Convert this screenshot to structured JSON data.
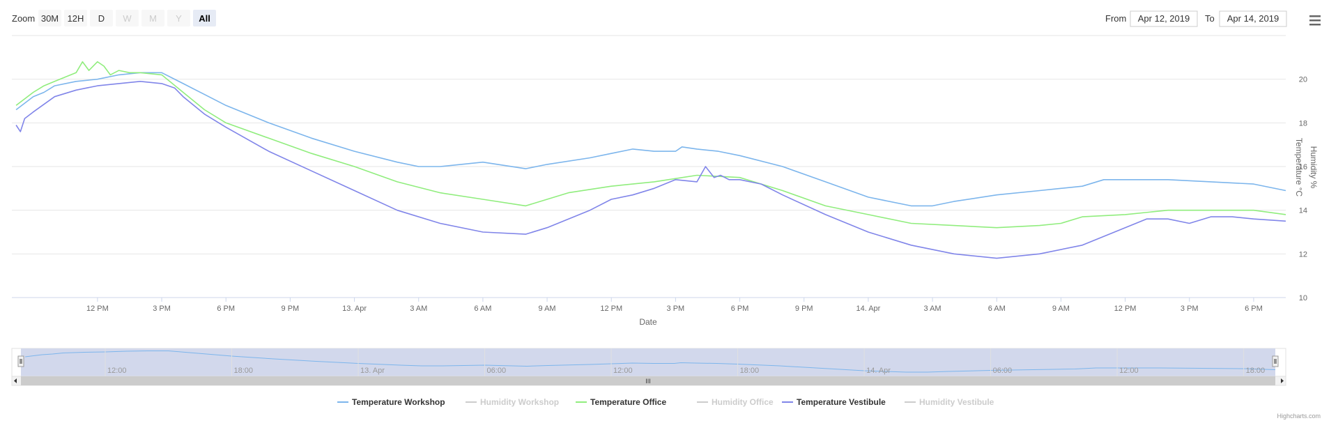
{
  "range_selector": {
    "zoom_label": "Zoom",
    "buttons": [
      {
        "label": "30M",
        "state": "normal"
      },
      {
        "label": "12H",
        "state": "normal"
      },
      {
        "label": "D",
        "state": "normal"
      },
      {
        "label": "W",
        "state": "disabled"
      },
      {
        "label": "M",
        "state": "disabled"
      },
      {
        "label": "Y",
        "state": "disabled"
      },
      {
        "label": "All",
        "state": "active"
      }
    ],
    "from_label": "From",
    "from_value": "Apr 12, 2019",
    "to_label": "To",
    "to_value": "Apr 14, 2019"
  },
  "menu_icon": "hamburger-menu-icon",
  "credits": "Highcharts.com",
  "navigator": {
    "labels": [
      "12:00",
      "18:00",
      "13. Apr",
      "06:00",
      "12:00",
      "18:00",
      "14. Apr",
      "06:00",
      "12:00",
      "18:00"
    ],
    "scrollbar_grip": "III"
  },
  "chart_data": {
    "type": "line",
    "xlabel": "Date",
    "ylabel": "Temperature °C",
    "ylabel_secondary": "Humidity %",
    "ylim": [
      10,
      22
    ],
    "y_ticks": [
      10,
      12,
      14,
      16,
      18,
      20
    ],
    "xlim_hours": [
      8.0,
      67.5
    ],
    "x_ticks": [
      {
        "h": 12,
        "label": "12 PM"
      },
      {
        "h": 15,
        "label": "3 PM"
      },
      {
        "h": 18,
        "label": "6 PM"
      },
      {
        "h": 21,
        "label": "9 PM"
      },
      {
        "h": 24,
        "label": "13. Apr"
      },
      {
        "h": 27,
        "label": "3 AM"
      },
      {
        "h": 30,
        "label": "6 AM"
      },
      {
        "h": 33,
        "label": "9 AM"
      },
      {
        "h": 36,
        "label": "12 PM"
      },
      {
        "h": 39,
        "label": "3 PM"
      },
      {
        "h": 42,
        "label": "6 PM"
      },
      {
        "h": 45,
        "label": "9 PM"
      },
      {
        "h": 48,
        "label": "14. Apr"
      },
      {
        "h": 51,
        "label": "3 AM"
      },
      {
        "h": 54,
        "label": "6 AM"
      },
      {
        "h": 57,
        "label": "9 AM"
      },
      {
        "h": 60,
        "label": "12 PM"
      },
      {
        "h": 63,
        "label": "3 PM"
      },
      {
        "h": 66,
        "label": "6 PM"
      }
    ],
    "legend_position": "bottom-center",
    "grid": true,
    "series": [
      {
        "name": "Temperature Workshop",
        "color": "#7cb5ec",
        "visible": true,
        "x": [
          8.2,
          9,
          9.5,
          10,
          11,
          12,
          13,
          14,
          15,
          16,
          17,
          18,
          20,
          22,
          24,
          26,
          27,
          28,
          30,
          32,
          33,
          35,
          36,
          37,
          38,
          39,
          39.3,
          40,
          41,
          42,
          44,
          46,
          48,
          50,
          51,
          52,
          54,
          56,
          57,
          58,
          59,
          60,
          62,
          64,
          66,
          67.5
        ],
        "y": [
          18.6,
          19.2,
          19.4,
          19.7,
          19.9,
          20.0,
          20.2,
          20.3,
          20.3,
          19.8,
          19.3,
          18.8,
          18.0,
          17.3,
          16.7,
          16.2,
          16.0,
          16.0,
          16.2,
          15.9,
          16.1,
          16.4,
          16.6,
          16.8,
          16.7,
          16.7,
          16.9,
          16.8,
          16.7,
          16.5,
          16.0,
          15.3,
          14.6,
          14.2,
          14.2,
          14.4,
          14.7,
          14.9,
          15.0,
          15.1,
          15.4,
          15.4,
          15.4,
          15.3,
          15.2,
          14.9
        ]
      },
      {
        "name": "Humidity Workshop",
        "color": "#cccccc",
        "visible": false,
        "x": [],
        "y": []
      },
      {
        "name": "Temperature Office",
        "color": "#90ed7d",
        "visible": true,
        "x": [
          8.2,
          9,
          9.5,
          10,
          10.5,
          11,
          11.3,
          11.6,
          12,
          12.3,
          12.6,
          13,
          13.5,
          14,
          15,
          16,
          17,
          18,
          20,
          22,
          24,
          26,
          28,
          30,
          32,
          34,
          36,
          38,
          40,
          42,
          44,
          46,
          48,
          50,
          52,
          54,
          56,
          57,
          58,
          60,
          62,
          64,
          66,
          67.5
        ],
        "y": [
          18.8,
          19.4,
          19.7,
          19.9,
          20.1,
          20.3,
          20.8,
          20.4,
          20.8,
          20.6,
          20.2,
          20.4,
          20.3,
          20.3,
          20.2,
          19.4,
          18.6,
          18.0,
          17.3,
          16.6,
          16.0,
          15.3,
          14.8,
          14.5,
          14.2,
          14.8,
          15.1,
          15.3,
          15.6,
          15.5,
          14.9,
          14.2,
          13.8,
          13.4,
          13.3,
          13.2,
          13.3,
          13.4,
          13.7,
          13.8,
          14.0,
          14.0,
          14.0,
          13.8
        ]
      },
      {
        "name": "Humidity Office",
        "color": "#cccccc",
        "visible": false,
        "x": [],
        "y": []
      },
      {
        "name": "Temperature Vestibule",
        "color": "#8085e9",
        "visible": true,
        "x": [
          8.2,
          8.4,
          8.6,
          9,
          10,
          11,
          12,
          13,
          14,
          15,
          15.6,
          16,
          17,
          18,
          20,
          22,
          24,
          26,
          28,
          30,
          32,
          33,
          34,
          35,
          36,
          37,
          38,
          39,
          40,
          40.4,
          40.8,
          41.1,
          41.5,
          42,
          43,
          44,
          46,
          48,
          50,
          52,
          54,
          56,
          58,
          60,
          61,
          62,
          63,
          64,
          65,
          66,
          67.5
        ],
        "y": [
          17.9,
          17.6,
          18.2,
          18.5,
          19.2,
          19.5,
          19.7,
          19.8,
          19.9,
          19.8,
          19.6,
          19.2,
          18.4,
          17.8,
          16.7,
          15.8,
          14.9,
          14.0,
          13.4,
          13.0,
          12.9,
          13.2,
          13.6,
          14.0,
          14.5,
          14.7,
          15.0,
          15.4,
          15.3,
          16.0,
          15.5,
          15.6,
          15.4,
          15.4,
          15.2,
          14.7,
          13.8,
          13.0,
          12.4,
          12.0,
          11.8,
          12.0,
          12.4,
          13.2,
          13.6,
          13.6,
          13.4,
          13.7,
          13.7,
          13.6,
          13.5
        ]
      },
      {
        "name": "Humidity Vestibule",
        "color": "#cccccc",
        "visible": false,
        "x": [],
        "y": []
      }
    ]
  }
}
